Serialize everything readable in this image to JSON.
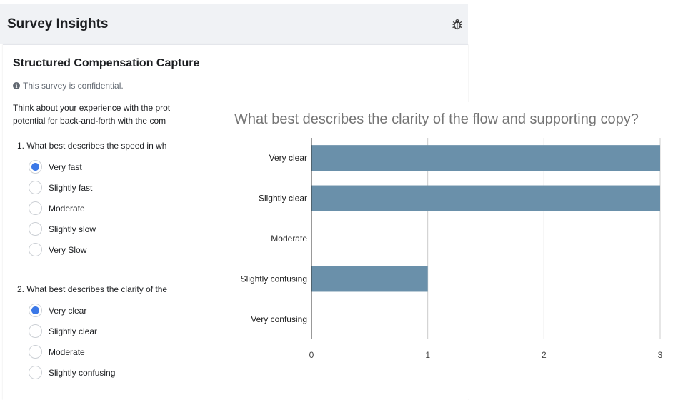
{
  "header": {
    "title": "Survey Insights",
    "icon": "bug-icon"
  },
  "survey": {
    "title": "Structured Compensation Capture",
    "confidential_note": "This survey is confidential.",
    "intro_lines": [
      "Think about your experience with the prot",
      "potential for back-and-forth with the com"
    ],
    "questions": [
      {
        "title": "1.  What best describes the speed in wh",
        "options": [
          "Very fast",
          "Slightly fast",
          "Moderate",
          "Slightly slow",
          "Very Slow"
        ],
        "selected": 0
      },
      {
        "title": "2.  What best describes the clarity of the",
        "options": [
          "Very clear",
          "Slightly clear",
          "Moderate",
          "Slightly confusing"
        ],
        "selected": 0
      }
    ]
  },
  "chart_data": {
    "type": "bar",
    "orientation": "horizontal",
    "title": "What best describes the clarity of the flow and supporting copy?",
    "categories": [
      "Very clear",
      "Slightly clear",
      "Moderate",
      "Slightly confusing",
      "Very confusing"
    ],
    "values": [
      3,
      3,
      0,
      1,
      0
    ],
    "xlim": [
      0,
      3
    ],
    "x_ticks": [
      "0",
      "1",
      "2",
      "3"
    ],
    "grid": true,
    "bar_color": "#6a90aa"
  }
}
